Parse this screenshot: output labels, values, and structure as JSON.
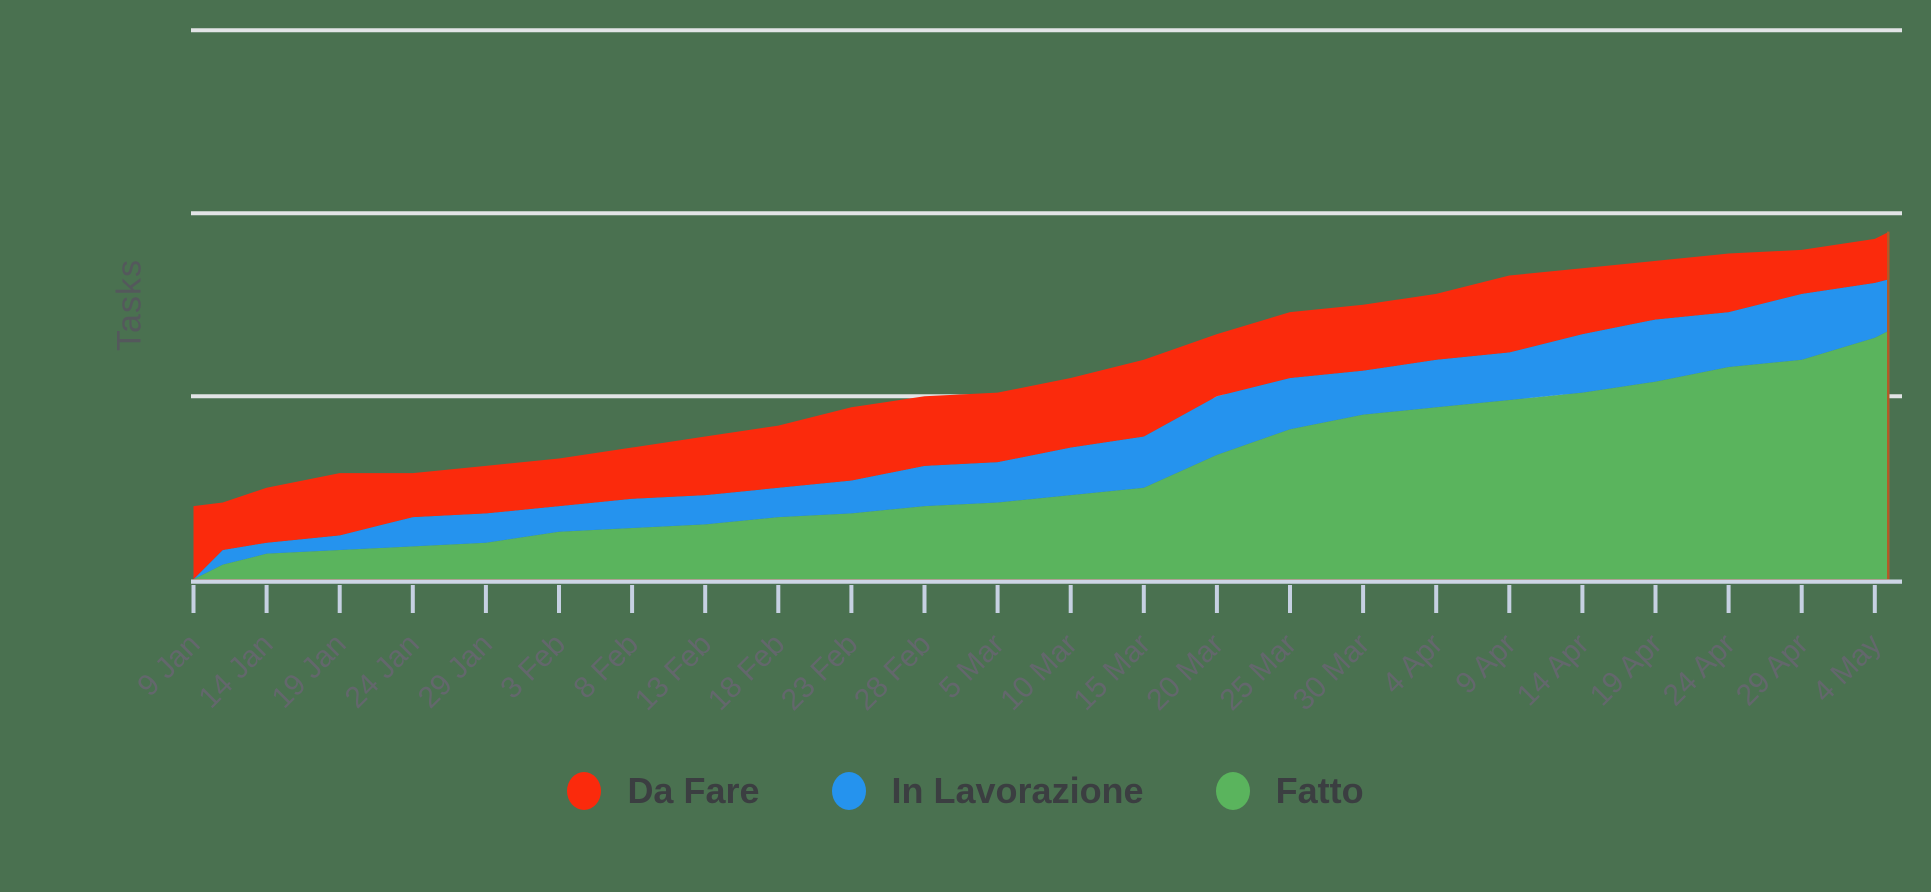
{
  "background_color": "#4a7150",
  "y_axis": {
    "label": "Tasks",
    "gridline_values": [
      50,
      100,
      150
    ],
    "min": 0,
    "tick_labels_visible": false,
    "gridline_color": "#e2e4e6",
    "axis_line_color": "#cdd6e5",
    "tick_color": "#c6d1e2"
  },
  "x_axis": {
    "tick_labels": [
      "9 Jan",
      "14 Jan",
      "19 Jan",
      "24 Jan",
      "29 Jan",
      "3 Feb",
      "8 Feb",
      "13 Feb",
      "18 Feb",
      "23 Feb",
      "28 Feb",
      "5 Mar",
      "10 Mar",
      "15 Mar",
      "20 Mar",
      "25 Mar",
      "30 Mar",
      "4 Apr",
      "9 Apr",
      "14 Apr",
      "19 Apr",
      "24 Apr",
      "29 Apr",
      "4 May"
    ],
    "label_color": "#63676c"
  },
  "legend": [
    {
      "label": "Da Fare",
      "color": "#fb2a0c"
    },
    {
      "label": "In Lavorazione",
      "color": "#2593ee"
    },
    {
      "label": "Fatto",
      "color": "#5ab45d"
    }
  ],
  "chart_data": {
    "type": "area",
    "stacked": true,
    "stack_order_bottom_to_top": [
      "Fatto",
      "In Lavorazione",
      "Da Fare"
    ],
    "x": [
      "9 Jan",
      "11 Jan",
      "14 Jan",
      "19 Jan",
      "24 Jan",
      "29 Jan",
      "3 Feb",
      "8 Feb",
      "13 Feb",
      "18 Feb",
      "23 Feb",
      "28 Feb",
      "5 Mar",
      "10 Mar",
      "15 Mar",
      "20 Mar",
      "25 Mar",
      "30 Mar",
      "4 Apr",
      "9 Apr",
      "14 Apr",
      "19 Apr",
      "24 Apr",
      "29 Apr",
      "4 May",
      "5 May"
    ],
    "day_offsets": [
      0,
      2,
      5,
      10,
      15,
      20,
      25,
      30,
      35,
      40,
      45,
      50,
      55,
      60,
      65,
      70,
      75,
      80,
      85,
      90,
      95,
      100,
      105,
      110,
      115,
      116
    ],
    "series": [
      {
        "name": "Fatto",
        "color": "#5ab45d",
        "values": [
          0,
          4,
          7,
          8,
          9,
          10,
          13,
          14,
          15,
          17,
          18,
          20,
          21,
          23,
          25,
          34,
          41,
          45,
          47,
          49,
          51,
          54,
          58,
          60,
          66,
          68
        ]
      },
      {
        "name": "In Lavorazione",
        "color": "#2593ee",
        "values": [
          0,
          4,
          3,
          4,
          8,
          8,
          7,
          8,
          8,
          8,
          9,
          11,
          11,
          13,
          14,
          16,
          14,
          12,
          13,
          13,
          16,
          17,
          15,
          18,
          15,
          14
        ]
      },
      {
        "name": "Da Fare",
        "color": "#fb2a0c",
        "values": [
          20,
          13,
          15,
          17,
          12,
          13,
          13,
          14,
          16,
          17,
          20,
          19,
          19,
          19,
          21,
          17,
          18,
          18,
          18,
          21,
          18,
          16,
          16,
          12,
          12,
          13
        ]
      }
    ],
    "title": "",
    "xlabel": "",
    "ylabel": "Tasks",
    "ylim": [
      0,
      160
    ],
    "grid": {
      "horizontal_values": [
        50,
        100,
        150
      ],
      "vertical": false
    },
    "legend_position": "bottom",
    "outline_colors": {
      "baseline": "#8e6b40",
      "right_edge": "#b45a27"
    }
  }
}
